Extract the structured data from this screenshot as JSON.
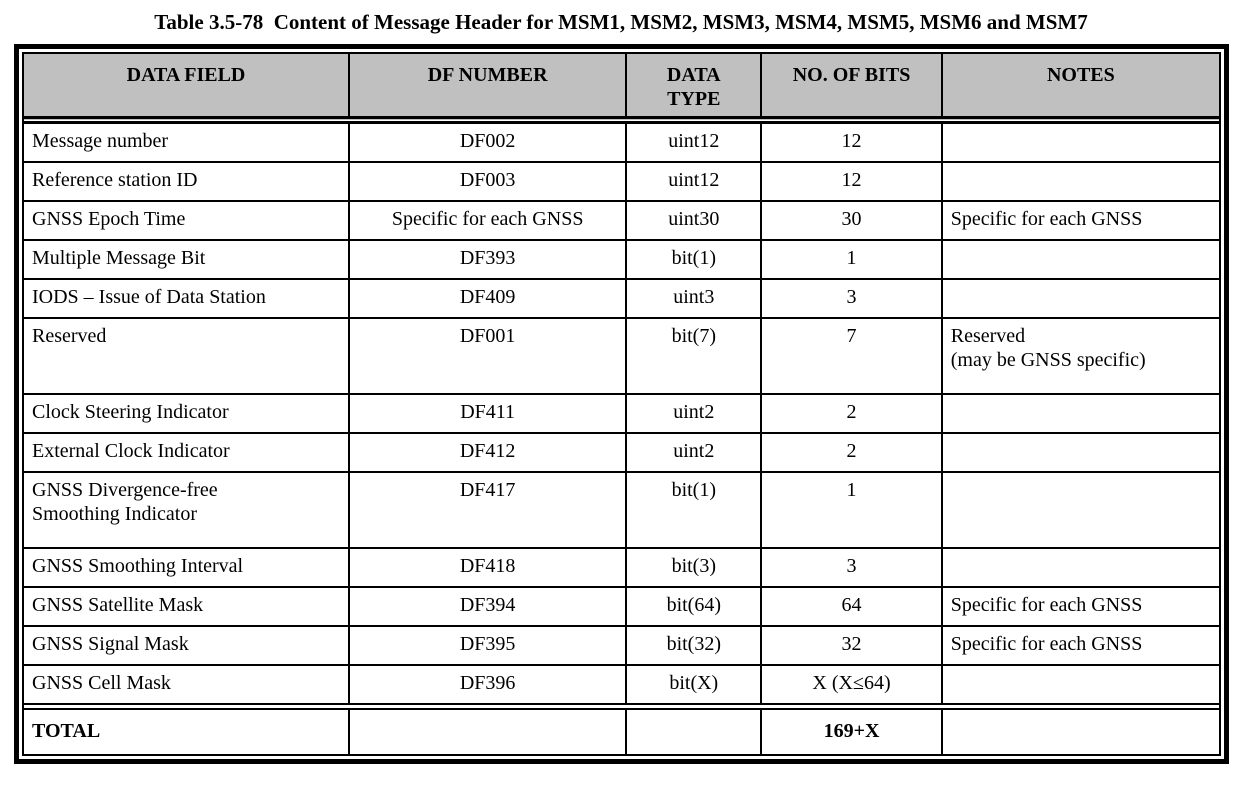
{
  "title": "Table 3.5-78  Content of Message Header for MSM1, MSM2, MSM3, MSM4, MSM5, MSM6 and MSM7",
  "colors": {
    "header_bg": "#c0c0c0",
    "border": "#000000",
    "background": "#ffffff",
    "text": "#000000"
  },
  "table": {
    "columns": [
      "DATA FIELD",
      "DF NUMBER",
      "DATA TYPE",
      "NO. OF BITS",
      "NOTES"
    ],
    "rows": [
      {
        "field": "Message number",
        "df": "DF002",
        "type": "uint12",
        "bits": "12",
        "notes": ""
      },
      {
        "field": "Reference station ID",
        "df": "DF003",
        "type": "uint12",
        "bits": "12",
        "notes": ""
      },
      {
        "field": "GNSS Epoch Time",
        "df": "Specific for each GNSS",
        "type": "uint30",
        "bits": "30",
        "notes": "Specific for each GNSS"
      },
      {
        "field": "Multiple Message Bit",
        "df": "DF393",
        "type": "bit(1)",
        "bits": "1",
        "notes": ""
      },
      {
        "field": "IODS – Issue of Data Station",
        "df": "DF409",
        "type": "uint3",
        "bits": "3",
        "notes": ""
      },
      {
        "field": "Reserved",
        "df": "DF001",
        "type": "bit(7)",
        "bits": "7",
        "notes": "Reserved\n(may be GNSS specific)"
      },
      {
        "field": "Clock Steering Indicator",
        "df": "DF411",
        "type": "uint2",
        "bits": "2",
        "notes": ""
      },
      {
        "field": "External Clock Indicator",
        "df": "DF412",
        "type": "uint2",
        "bits": "2",
        "notes": ""
      },
      {
        "field": "GNSS Divergence-free\nSmoothing Indicator",
        "df": "DF417",
        "type": "bit(1)",
        "bits": "1",
        "notes": ""
      },
      {
        "field": "GNSS Smoothing Interval",
        "df": "DF418",
        "type": "bit(3)",
        "bits": "3",
        "notes": ""
      },
      {
        "field": "GNSS Satellite Mask",
        "df": "DF394",
        "type": "bit(64)",
        "bits": "64",
        "notes": "Specific for each GNSS"
      },
      {
        "field": "GNSS Signal Mask",
        "df": "DF395",
        "type": "bit(32)",
        "bits": "32",
        "notes": "Specific for each GNSS"
      },
      {
        "field": "GNSS Cell Mask",
        "df": "DF396",
        "type": "bit(X)",
        "bits": "X (X≤64)",
        "notes": ""
      }
    ],
    "total": {
      "label": "TOTAL",
      "bits": "169+X"
    }
  }
}
